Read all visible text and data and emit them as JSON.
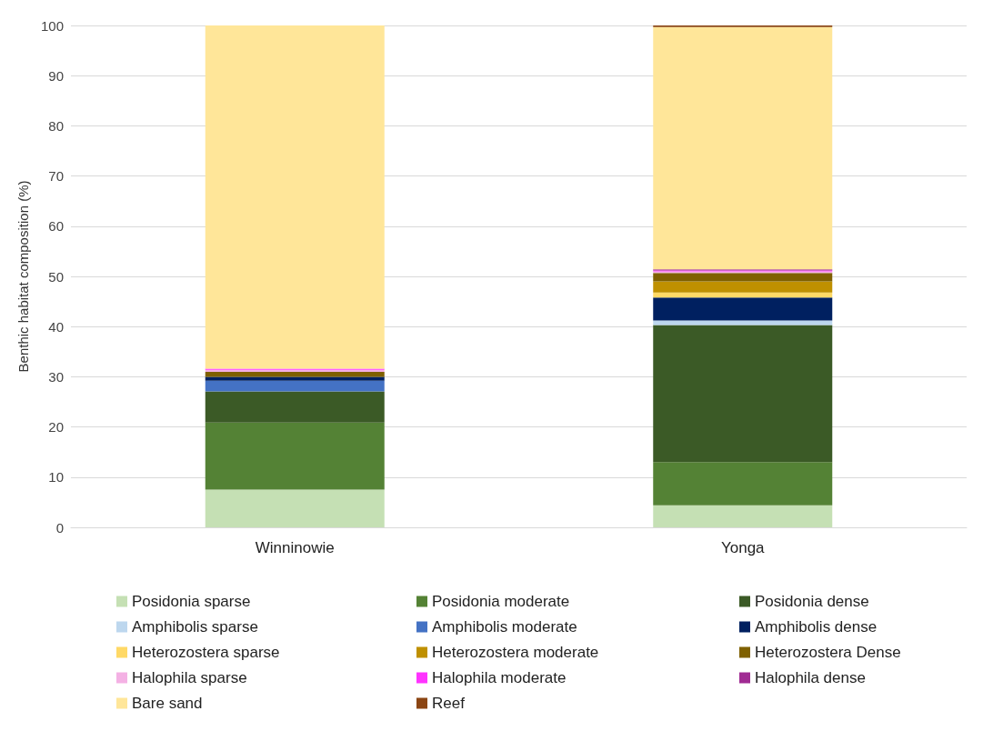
{
  "chart_data": {
    "type": "bar",
    "stacked": true,
    "ylabel": "Benthic habitat composition (%)",
    "categories": [
      "Winninowie",
      "Yonga"
    ],
    "ylim": [
      0,
      100
    ],
    "yticks": [
      0,
      10,
      20,
      30,
      40,
      50,
      60,
      70,
      80,
      90,
      100
    ],
    "grid": "y",
    "legend": "bottom",
    "series": [
      {
        "name": "Posidonia sparse",
        "color": "#c5e0b4",
        "values": [
          7.5,
          4.4
        ]
      },
      {
        "name": "Posidonia moderate",
        "color": "#548235",
        "values": [
          13.4,
          8.6
        ]
      },
      {
        "name": "Posidonia dense",
        "color": "#3b5a26",
        "values": [
          6.2,
          27.3
        ]
      },
      {
        "name": "Amphibolis sparse",
        "color": "#bdd7ee",
        "values": [
          0,
          0.9
        ]
      },
      {
        "name": "Amphibolis moderate",
        "color": "#4472c4",
        "values": [
          2.1,
          0
        ]
      },
      {
        "name": "Amphibolis dense",
        "color": "#002060",
        "values": [
          0.8,
          4.6
        ]
      },
      {
        "name": "Heterozostera sparse",
        "color": "#ffd966",
        "values": [
          0,
          1.0
        ]
      },
      {
        "name": "Heterozostera moderate",
        "color": "#bf9000",
        "values": [
          0,
          2.2
        ]
      },
      {
        "name": "Heterozostera Dense",
        "color": "#7f6000",
        "values": [
          1.0,
          1.7
        ]
      },
      {
        "name": "Halophila sparse",
        "color": "#f4b1e4",
        "values": [
          0.4,
          0.3
        ]
      },
      {
        "name": "Halophila moderate",
        "color": "#ff33ff",
        "values": [
          0.2,
          0.2
        ]
      },
      {
        "name": "Halophila dense",
        "color": "#a02b93",
        "values": [
          0,
          0.2
        ]
      },
      {
        "name": "Bare sand",
        "color": "#ffe699",
        "values": [
          68.4,
          48.3
        ]
      },
      {
        "name": "Reef",
        "color": "#8b4513",
        "values": [
          0,
          0.3
        ]
      }
    ]
  }
}
